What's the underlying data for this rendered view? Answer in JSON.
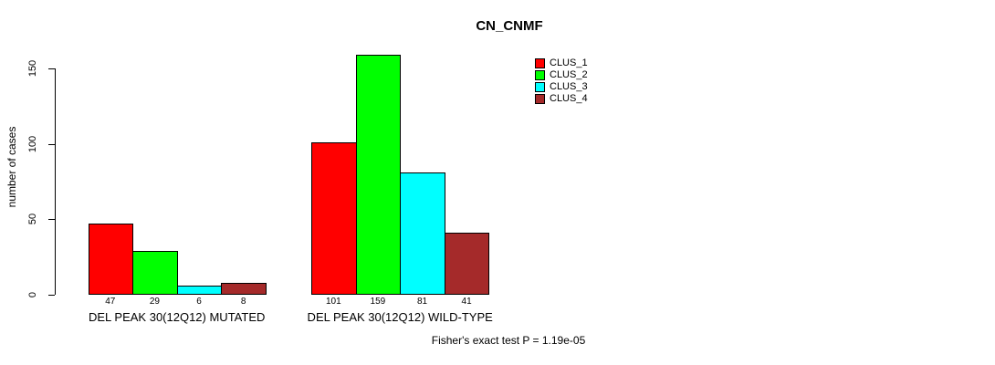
{
  "figure": {
    "background": "#FFFFFF",
    "bar_border_color": "#000000"
  },
  "chart_data": {
    "type": "bar",
    "title": "CN_CNMF",
    "ylabel": "number of cases",
    "xlabel": "",
    "ylim": [
      0,
      150
    ],
    "yticks": [
      0,
      50,
      100,
      150
    ],
    "grid": false,
    "legend_position": "top-right",
    "bar_value_labels": true,
    "categories": [
      "DEL PEAK 30(12Q12) MUTATED",
      "DEL PEAK 30(12Q12) WILD-TYPE"
    ],
    "series": [
      {
        "name": "CLUS_1",
        "color": "#FF0000",
        "values": [
          47,
          101
        ]
      },
      {
        "name": "CLUS_2",
        "color": "#00FF00",
        "values": [
          29,
          159
        ]
      },
      {
        "name": "CLUS_3",
        "color": "#00FFFF",
        "values": [
          6,
          81
        ]
      },
      {
        "name": "CLUS_4",
        "color": "#A52A2A",
        "values": [
          8,
          41
        ]
      }
    ],
    "annotation": "Fisher's exact test P = 1.19e-05"
  }
}
